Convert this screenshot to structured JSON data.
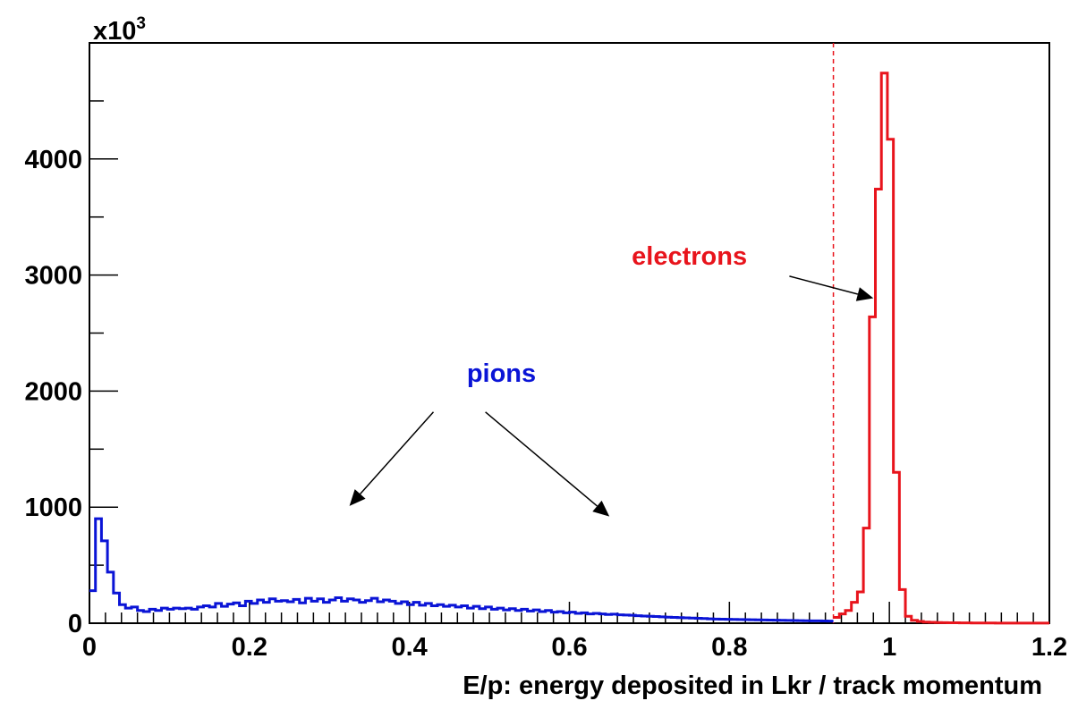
{
  "chart_data": {
    "type": "line",
    "title": "",
    "xlabel": "E/p: energy deposited in Lkr / track momentum",
    "ylabel": "",
    "y_multiplier_label": {
      "base": "x10",
      "exponent": "3"
    },
    "xlim": [
      0,
      1.2
    ],
    "ylim": [
      0,
      5000
    ],
    "x_ticks": [
      0,
      0.2,
      0.4,
      0.6,
      0.8,
      1,
      1.2
    ],
    "y_ticks": [
      0,
      1000,
      2000,
      3000,
      4000
    ],
    "x_tick_labels": [
      "0",
      "0.2",
      "0.4",
      "0.6",
      "0.8",
      "1",
      "1.2"
    ],
    "y_tick_labels": [
      "0",
      "1000",
      "2000",
      "3000",
      "4000"
    ],
    "grid": false,
    "histogram": true,
    "bin_width": 0.0075,
    "cut_line": {
      "x": 0.93,
      "color": "#e8141c",
      "style": "dashed"
    },
    "series": [
      {
        "name": "pions",
        "color": "#0a14d6",
        "x": [
          0.0,
          0.0075,
          0.015,
          0.0225,
          0.03,
          0.0375,
          0.045,
          0.0525,
          0.06,
          0.0675,
          0.075,
          0.0825,
          0.09,
          0.0975,
          0.105,
          0.1125,
          0.12,
          0.1275,
          0.135,
          0.1425,
          0.15,
          0.1575,
          0.165,
          0.1725,
          0.18,
          0.1875,
          0.195,
          0.2025,
          0.21,
          0.2175,
          0.225,
          0.2325,
          0.24,
          0.2475,
          0.255,
          0.2625,
          0.27,
          0.2775,
          0.285,
          0.2925,
          0.3,
          0.3075,
          0.315,
          0.3225,
          0.33,
          0.3375,
          0.345,
          0.3525,
          0.36,
          0.3675,
          0.375,
          0.3825,
          0.39,
          0.3975,
          0.405,
          0.4125,
          0.42,
          0.4275,
          0.435,
          0.4425,
          0.45,
          0.4575,
          0.465,
          0.4725,
          0.48,
          0.4875,
          0.495,
          0.5025,
          0.51,
          0.5175,
          0.525,
          0.5325,
          0.54,
          0.5475,
          0.555,
          0.5625,
          0.57,
          0.5775,
          0.585,
          0.5925,
          0.6,
          0.6075,
          0.615,
          0.6225,
          0.63,
          0.6375,
          0.645,
          0.6525,
          0.66,
          0.6675,
          0.675,
          0.6825,
          0.69,
          0.6975,
          0.705,
          0.7125,
          0.72,
          0.7275,
          0.735,
          0.7425,
          0.75,
          0.7575,
          0.765,
          0.7725,
          0.78,
          0.7875,
          0.795,
          0.8025,
          0.81,
          0.8175,
          0.825,
          0.8325,
          0.84,
          0.8475,
          0.855,
          0.8625,
          0.87,
          0.8775,
          0.885,
          0.8925,
          0.9,
          0.9075,
          0.915,
          0.9225
        ],
        "y": [
          280,
          900,
          710,
          440,
          260,
          160,
          130,
          140,
          110,
          100,
          120,
          110,
          130,
          120,
          130,
          125,
          130,
          120,
          140,
          150,
          140,
          170,
          145,
          165,
          175,
          150,
          190,
          170,
          200,
          180,
          210,
          190,
          195,
          185,
          205,
          175,
          215,
          190,
          210,
          180,
          200,
          220,
          190,
          210,
          200,
          180,
          195,
          215,
          185,
          200,
          190,
          170,
          185,
          160,
          180,
          155,
          170,
          150,
          160,
          145,
          155,
          140,
          150,
          130,
          145,
          125,
          140,
          120,
          130,
          115,
          125,
          110,
          120,
          105,
          115,
          100,
          110,
          95,
          100,
          90,
          95,
          85,
          90,
          80,
          85,
          80,
          75,
          78,
          72,
          70,
          68,
          65,
          62,
          60,
          58,
          55,
          52,
          50,
          48,
          46,
          44,
          42,
          40,
          38,
          36,
          35,
          34,
          33,
          32,
          31,
          30,
          29,
          28,
          27,
          26,
          25,
          24,
          23,
          22,
          21,
          20,
          20,
          19,
          18
        ]
      },
      {
        "name": "electrons",
        "color": "#e8141c",
        "x": [
          0.93,
          0.9375,
          0.945,
          0.9525,
          0.96,
          0.9675,
          0.975,
          0.9825,
          0.99,
          0.9975,
          1.005,
          1.0125,
          1.02,
          1.0275,
          1.035,
          1.0425,
          1.05,
          1.0575,
          1.065,
          1.0725,
          1.08,
          1.0875,
          1.095,
          1.1025,
          1.11,
          1.1175,
          1.125,
          1.1325,
          1.14,
          1.1475,
          1.155,
          1.1625,
          1.17,
          1.1775,
          1.185,
          1.1925
        ],
        "y": [
          50,
          80,
          110,
          180,
          270,
          820,
          2640,
          3740,
          4740,
          4170,
          1300,
          290,
          60,
          25,
          15,
          10,
          8,
          6,
          5,
          4,
          4,
          3,
          3,
          2,
          2,
          2,
          2,
          1,
          1,
          1,
          1,
          1,
          1,
          1,
          1,
          1
        ]
      }
    ],
    "annotations": [
      {
        "text": "pions",
        "color": "#0a14d6",
        "x": 0.515,
        "y": 2080
      },
      {
        "text": "electrons",
        "color": "#e8141c",
        "x": 0.75,
        "y": 3090
      }
    ],
    "arrows": [
      {
        "from": [
          0.43,
          1820
        ],
        "to": [
          0.325,
          1010
        ],
        "color": "#000000"
      },
      {
        "from": [
          0.495,
          1820
        ],
        "to": [
          0.65,
          920
        ],
        "color": "#000000"
      },
      {
        "from": [
          0.875,
          2990
        ],
        "to": [
          0.98,
          2800
        ],
        "color": "#000000"
      }
    ]
  }
}
